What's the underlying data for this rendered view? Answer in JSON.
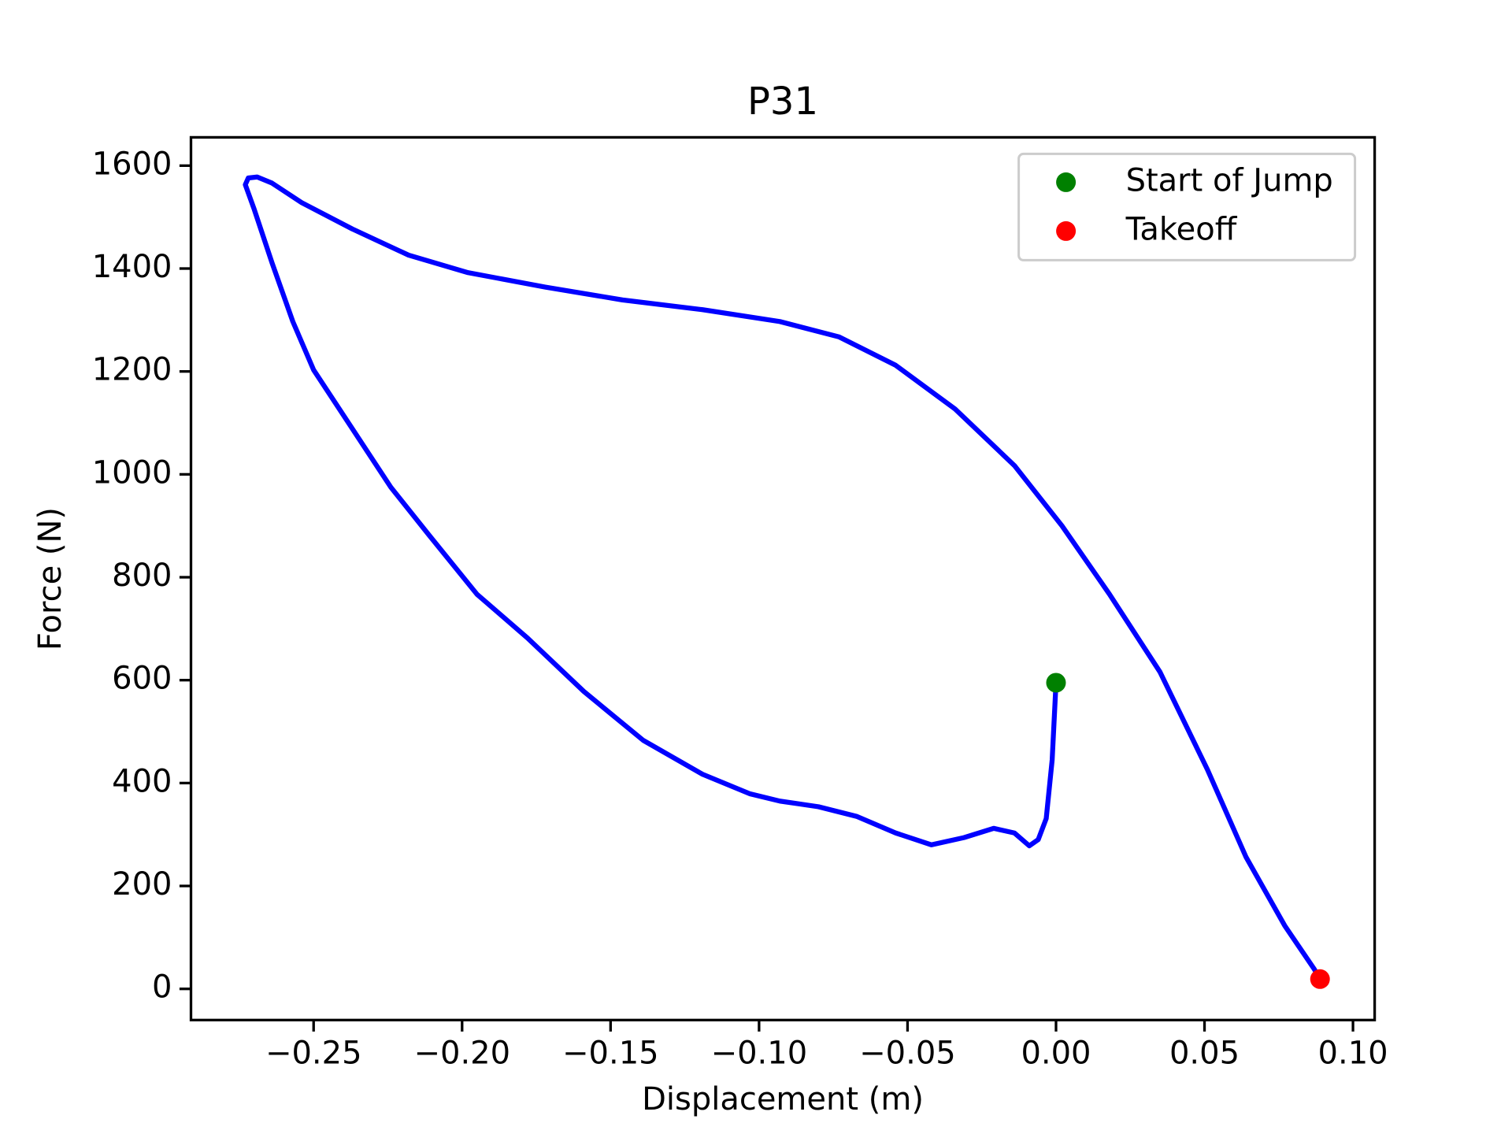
{
  "chart_data": {
    "type": "line",
    "title": "P31",
    "x_label": "Displacement (m)",
    "y_label": "Force (N)",
    "xlim": [
      -0.2913,
      0.1073
    ],
    "ylim": [
      -60.6,
      1655
    ],
    "xticks": [
      {
        "value": -0.25,
        "label": "−0.25"
      },
      {
        "value": -0.2,
        "label": "−0.20"
      },
      {
        "value": -0.15,
        "label": "−0.15"
      },
      {
        "value": -0.1,
        "label": "−0.10"
      },
      {
        "value": -0.05,
        "label": "−0.05"
      },
      {
        "value": 0,
        "label": "0.00"
      },
      0.05,
      {
        "value": 0.1,
        "label": "0.10"
      }
    ],
    "yticks": [
      0,
      200,
      400,
      600,
      800,
      1000,
      1200,
      1400,
      1600
    ],
    "grid": false,
    "legend": "upper right",
    "series": [
      {
        "color": "#0000ff",
        "style": "line",
        "x": [
          0,
          -0.0013,
          -0.0033,
          -0.006,
          -0.009,
          -0.014,
          -0.021,
          -0.031,
          -0.042,
          -0.054,
          -0.067,
          -0.08,
          -0.093,
          -0.103,
          -0.119,
          -0.139,
          -0.159,
          -0.178,
          -0.195,
          -0.211,
          -0.224,
          -0.237,
          -0.25,
          -0.257,
          -0.264,
          -0.27,
          -0.273,
          -0.272,
          -0.269,
          -0.264,
          -0.254,
          -0.237,
          -0.218,
          -0.198,
          -0.172,
          -0.146,
          -0.119,
          -0.093,
          -0.073,
          -0.054,
          -0.034,
          -0.014,
          0.002,
          0.018,
          0.035,
          0.051,
          0.064,
          0.077,
          0.087,
          0.0889
        ],
        "values": [
          595,
          445,
          331,
          290,
          278,
          303,
          312,
          294,
          280,
          303,
          335,
          354,
          365,
          379,
          417,
          483,
          578,
          682,
          767,
          881,
          975,
          1089,
          1203,
          1297,
          1411,
          1515,
          1563,
          1576,
          1578,
          1566,
          1528,
          1477,
          1426,
          1392,
          1364,
          1339,
          1320,
          1297,
          1267,
          1212,
          1127,
          1017,
          900,
          767,
          616,
          426,
          256,
          123,
          38,
          19
        ]
      },
      {
        "name": "Start of Jump",
        "color": "#008000",
        "style": "marker",
        "x": [
          0
        ],
        "values": [
          595
        ]
      },
      {
        "name": "Takeoff",
        "color": "#ff0000",
        "style": "marker",
        "x": [
          0.0889
        ],
        "values": [
          19
        ]
      }
    ]
  }
}
